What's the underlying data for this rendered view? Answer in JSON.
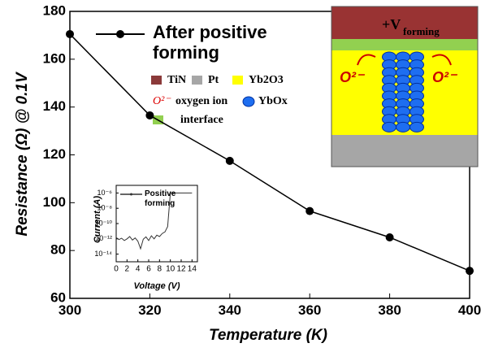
{
  "chart_data": [
    {
      "type": "line",
      "x_label": "Temperature (K)",
      "y_label": "Resistance (Ω) @ 0.1V",
      "x": [
        300,
        320,
        340,
        360,
        380,
        400
      ],
      "series": [
        {
          "name": "After positive forming",
          "color": "#000000",
          "values": [
            170.5,
            136.5,
            117.5,
            96.5,
            85.5,
            71.5
          ]
        }
      ],
      "xlim": [
        300,
        400
      ],
      "xticks": [
        300,
        320,
        340,
        360,
        380,
        400
      ],
      "ylim": [
        60,
        180
      ],
      "yticks": [
        60,
        80,
        100,
        120,
        140,
        160,
        180
      ],
      "legend": "top-left"
    },
    {
      "type": "line",
      "x_label": "Voltage (V)",
      "y_label": "Current (A)",
      "log_y": true,
      "x": [
        0,
        0.5,
        1,
        1.5,
        2,
        2.5,
        3,
        3.5,
        4,
        4.5,
        5,
        5.5,
        6,
        6.5,
        7,
        7.5,
        8,
        8.5,
        9,
        9.5,
        10,
        10.5,
        11,
        11.5,
        12,
        12.5,
        13,
        13.5,
        14
      ],
      "series": [
        {
          "name": "Positive forming",
          "color": "#333333",
          "values": [
            1.5e-12,
            8e-13,
            1.2e-12,
            6e-13,
            1e-12,
            2e-12,
            7e-13,
            1.3e-12,
            5e-13,
            5e-14,
            9e-13,
            1.8e-12,
            6e-13,
            2.5e-12,
            1e-12,
            3e-12,
            2e-12,
            5e-12,
            8e-12,
            4e-11,
            1e-06,
            1e-06,
            1e-06,
            1e-06,
            1e-06,
            1e-06,
            1e-06,
            1e-06,
            1e-06
          ]
        }
      ],
      "xlim": [
        0,
        15
      ],
      "xticks": [
        0,
        2,
        4,
        6,
        8,
        10,
        12,
        14
      ],
      "ylim": [
        1e-15,
        1e-05
      ],
      "yticks": [
        {
          "value": 1e-06,
          "label": "10⁻⁶"
        },
        {
          "value": 1e-08,
          "label": "10⁻⁸"
        },
        {
          "value": 1e-10,
          "label": "10⁻¹⁰"
        },
        {
          "value": 1e-12,
          "label": "10⁻¹²"
        },
        {
          "value": 1e-14,
          "label": "10⁻¹⁴"
        }
      ],
      "legend": "top-right"
    }
  ],
  "schematic": {
    "voltage": "+V",
    "voltage_subscript": "forming",
    "ion_left": "O²⁻",
    "ion_right": "O²⁻",
    "legend": {
      "tin": "TiN",
      "pt": "Pt",
      "yb2o3": "Yb2O3",
      "ion_symbol": "O²⁻",
      "ion": "oxygen ion",
      "ybox": "YbOx",
      "interface": "interface"
    }
  }
}
